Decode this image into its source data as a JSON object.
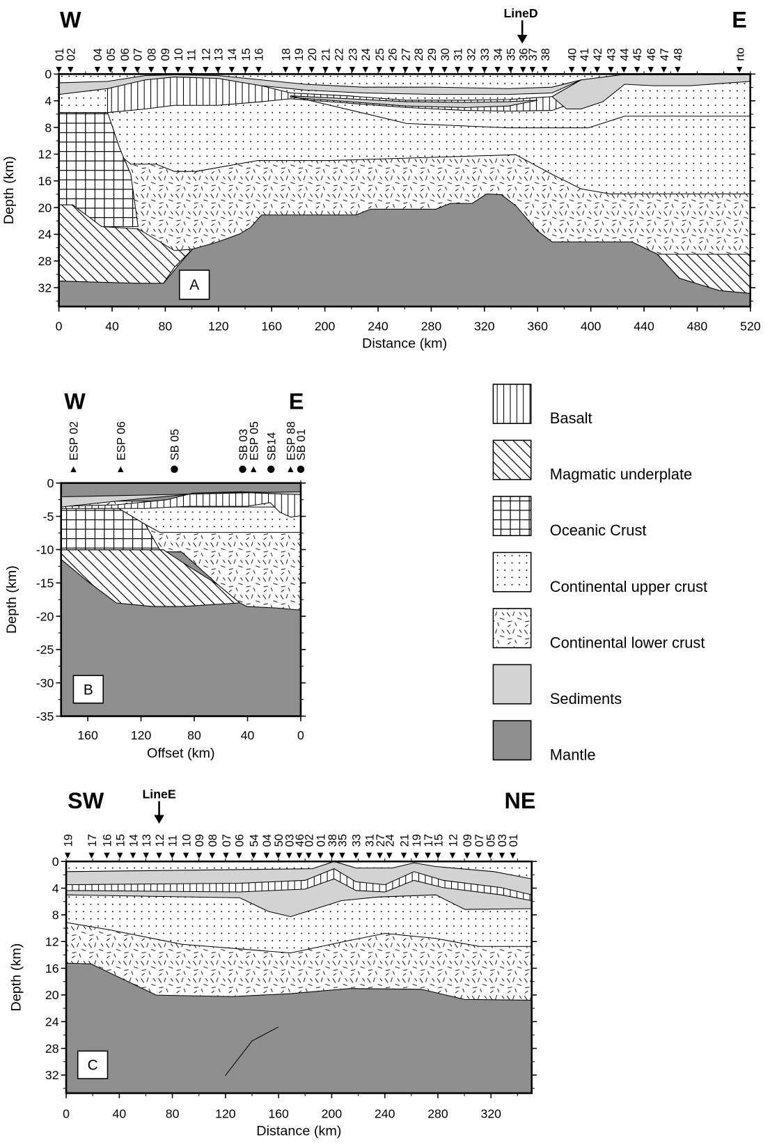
{
  "panel_a": {
    "west": "W",
    "east": "E",
    "line_marker": "LineD",
    "stations": [
      "01",
      "02",
      "04",
      "05",
      "06",
      "07",
      "08",
      "09",
      "10",
      "11",
      "12",
      "13",
      "14",
      "15",
      "16",
      "18",
      "19",
      "20",
      "21",
      "22",
      "23",
      "24",
      "25",
      "26",
      "27",
      "28",
      "29",
      "30",
      "31",
      "32",
      "33",
      "34",
      "35",
      "36",
      "37",
      "38",
      "40",
      "41",
      "42",
      "43",
      "44",
      "45",
      "46",
      "47",
      "48",
      "rto"
    ],
    "xticks": [
      0,
      40,
      80,
      120,
      160,
      200,
      240,
      280,
      320,
      360,
      400,
      440,
      480,
      520
    ],
    "yticks": [
      0,
      4,
      8,
      12,
      16,
      20,
      24,
      28,
      32
    ],
    "xlabel": "Distance (km)",
    "ylabel": "Depth (km)",
    "label": "A"
  },
  "panel_b": {
    "west": "W",
    "east": "E",
    "stations": [
      "ESP 02",
      "ESP 06",
      "SB 05",
      "SB 03",
      "ESP 05",
      "SB14",
      "ESP 88",
      "SB 01"
    ],
    "xticks": [
      160,
      120,
      80,
      40,
      0
    ],
    "yticks": [
      0,
      -5,
      -10,
      -15,
      -20,
      -25,
      -30,
      -35
    ],
    "xlabel": "Offset (km)",
    "ylabel": "Depth (km)",
    "label": "B"
  },
  "panel_c": {
    "west": "SW",
    "east": "NE",
    "line_marker": "LineE",
    "stations": [
      "19",
      "17",
      "16",
      "15",
      "14",
      "13",
      "12",
      "11",
      "10",
      "09",
      "08",
      "07",
      "06",
      "54",
      "04",
      "50",
      "03",
      "46",
      "02",
      "01",
      "38",
      "35",
      "33",
      "31",
      "27",
      "24",
      "21",
      "19",
      "17",
      "15",
      "12",
      "09",
      "07",
      "05",
      "03",
      "01"
    ],
    "xticks": [
      0,
      40,
      80,
      120,
      160,
      200,
      240,
      280,
      320
    ],
    "yticks": [
      0,
      4,
      8,
      12,
      16,
      20,
      24,
      28,
      32
    ],
    "xlabel": "Distance (km)",
    "ylabel": "Depth (km)",
    "label": "C"
  },
  "legend": [
    "Basalt",
    "Magmatic underplate",
    "Oceanic Crust",
    "Continental upper crust",
    "Continental lower crust",
    "Sediments",
    "Mantle"
  ]
}
